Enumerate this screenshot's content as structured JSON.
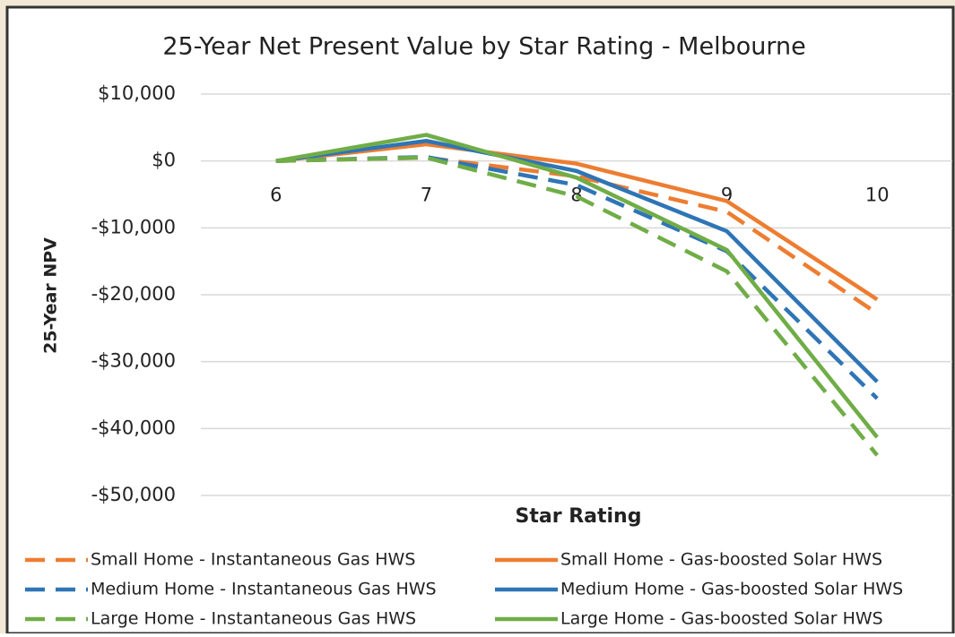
{
  "chart_data": {
    "type": "line",
    "title": "25-Year Net Present Value by Star Rating - Melbourne",
    "x_label": "Star Rating",
    "y_label": "25-Year NPV",
    "categories": [
      "6",
      "7",
      "8",
      "9",
      "10"
    ],
    "ylim": [
      -50000,
      10000
    ],
    "yticks": [
      {
        "value": -50000,
        "label": "-$50,000"
      },
      {
        "value": -40000,
        "label": "-$40,000"
      },
      {
        "value": -30000,
        "label": "-$30,000"
      },
      {
        "value": -20000,
        "label": "-$20,000"
      },
      {
        "value": -10000,
        "label": "-$10,000"
      },
      {
        "value": 0,
        "label": "$0"
      },
      {
        "value": 10000,
        "label": "$10,000"
      }
    ],
    "grid": true,
    "legend": "bottom",
    "series": [
      {
        "name": "Small Home - Instantaneous Gas HWS",
        "color": "#ed7d31",
        "dashed": true,
        "values": [
          0,
          500,
          -2300,
          -7600,
          -22800
        ]
      },
      {
        "name": "Small Home - Gas-boosted Solar HWS",
        "color": "#ed7d31",
        "dashed": false,
        "values": [
          0,
          2500,
          -400,
          -6000,
          -20700
        ]
      },
      {
        "name": "Medium Home - Instantaneous Gas HWS",
        "color": "#2e75b6",
        "dashed": true,
        "values": [
          0,
          600,
          -3600,
          -13500,
          -35500
        ]
      },
      {
        "name": "Medium Home - Gas-boosted Solar HWS",
        "color": "#2e75b6",
        "dashed": false,
        "values": [
          0,
          3000,
          -1500,
          -10500,
          -33000
        ]
      },
      {
        "name": "Large Home - Instantaneous Gas HWS",
        "color": "#70ad47",
        "dashed": true,
        "values": [
          0,
          500,
          -5300,
          -16500,
          -44000
        ]
      },
      {
        "name": "Large Home - Gas-boosted Solar HWS",
        "color": "#70ad47",
        "dashed": false,
        "values": [
          0,
          3900,
          -2500,
          -13300,
          -41300
        ]
      }
    ]
  }
}
